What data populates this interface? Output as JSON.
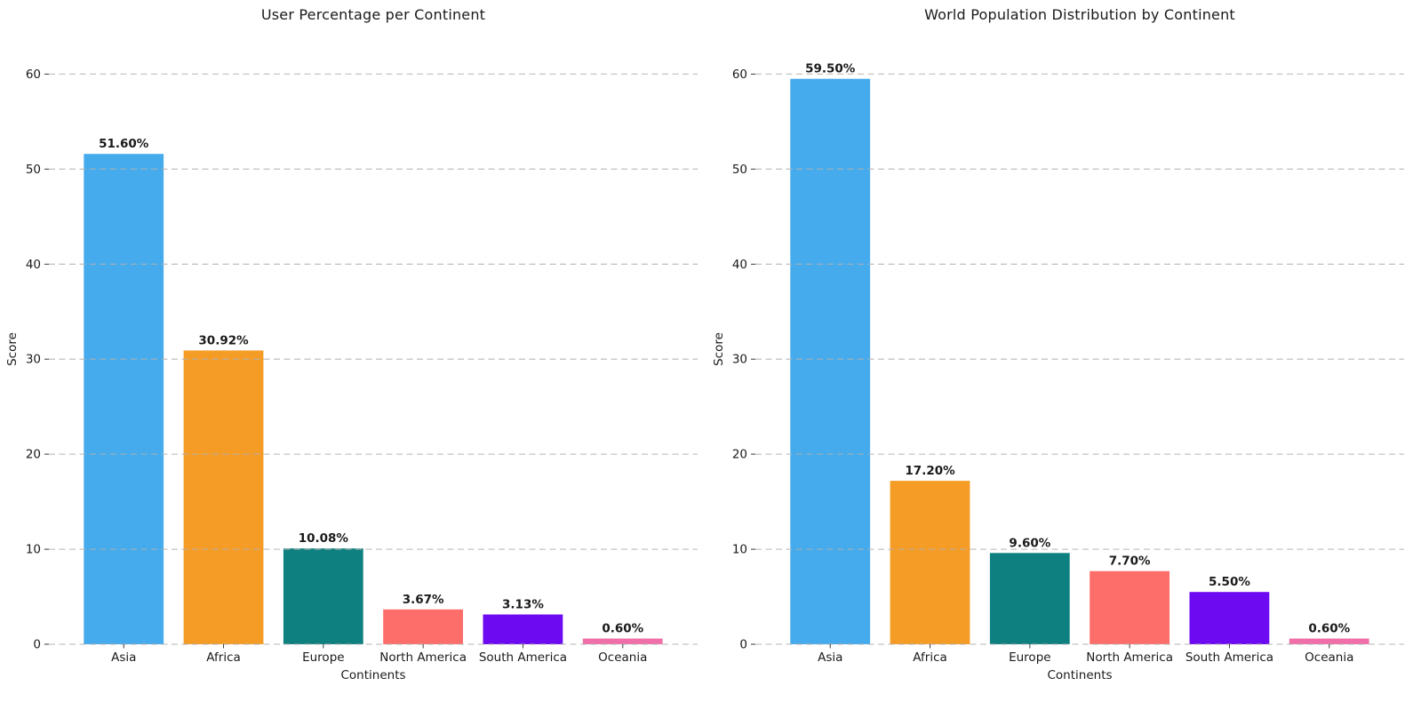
{
  "figure": {
    "background_color": "#ffffff",
    "text_color": "#1a1a1a",
    "grid_color": "#b0b0b0",
    "tick_color": "#3a3a3a"
  },
  "chart_data": [
    {
      "type": "bar",
      "title": "User Percentage per Continent",
      "xlabel": "Continents",
      "ylabel": "Score",
      "categories": [
        "Asia",
        "Africa",
        "Europe",
        "North America",
        "South America",
        "Oceania"
      ],
      "values": [
        51.6,
        30.92,
        10.08,
        3.67,
        3.13,
        0.6
      ],
      "value_labels": [
        "51.60%",
        "30.92%",
        "10.08%",
        "3.67%",
        "3.13%",
        "0.60%"
      ],
      "bar_colors": [
        "#45ABEC",
        "#F59C27",
        "#0F8080",
        "#FD6E6B",
        "#6D0AF1",
        "#F06FA8"
      ],
      "ylim": [
        0,
        62
      ],
      "yticks": [
        0,
        10,
        20,
        30,
        40,
        50,
        60
      ],
      "grid": "horizontal-dashed",
      "legend": "none"
    },
    {
      "type": "bar",
      "title": "World Population Distribution by Continent",
      "xlabel": "Continents",
      "ylabel": "Score",
      "categories": [
        "Asia",
        "Africa",
        "Europe",
        "North America",
        "South America",
        "Oceania"
      ],
      "values": [
        59.5,
        17.2,
        9.6,
        7.7,
        5.5,
        0.6
      ],
      "value_labels": [
        "59.50%",
        "17.20%",
        "9.60%",
        "7.70%",
        "5.50%",
        "0.60%"
      ],
      "bar_colors": [
        "#45ABEC",
        "#F59C27",
        "#0F8080",
        "#FD6E6B",
        "#6D0AF1",
        "#F06FA8"
      ],
      "ylim": [
        0,
        62
      ],
      "yticks": [
        0,
        10,
        20,
        30,
        40,
        50,
        60
      ],
      "grid": "horizontal-dashed",
      "legend": "none"
    }
  ]
}
